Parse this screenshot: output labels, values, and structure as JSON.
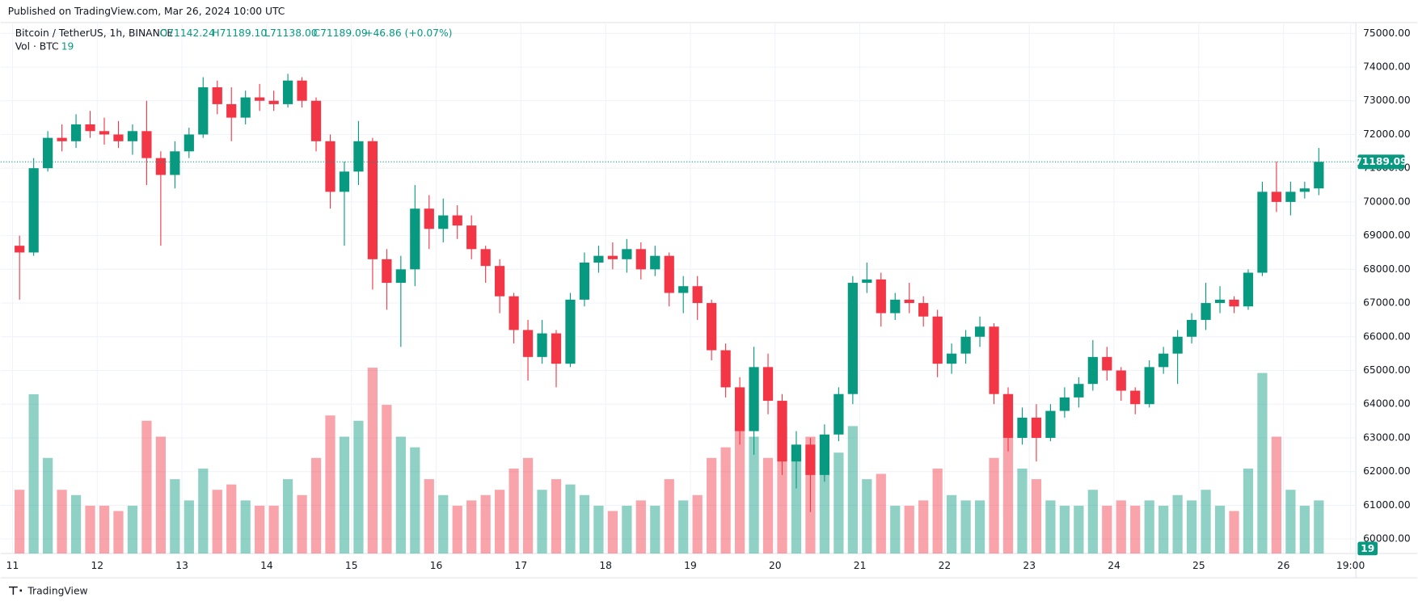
{
  "header": {
    "published": "Published on TradingView.com, Mar 26, 2024 10:00 UTC",
    "symbol": "Bitcoin / TetherUS, 1h, BINANCE",
    "open": "O71142.24",
    "high": "H71189.10",
    "low": "L71138.00",
    "close": "C71189.09",
    "change": "+46.86 (+0.07%)",
    "volume_label": "Vol · BTC",
    "volume_value": 19
  },
  "footer": {
    "brand": "TradingView"
  },
  "chart_data": {
    "type": "candlestick",
    "up_color": "#089981",
    "down_color": "#f23645",
    "xlim": [
      -1.3,
      380.5
    ],
    "ylim": [
      59570,
      75320
    ],
    "vlim": [
      0,
      100000
    ],
    "grid": true,
    "yticks": [
      {
        "value": 60000,
        "label": "60000.00"
      },
      {
        "value": 61000,
        "label": "61000.00"
      },
      {
        "value": 62000,
        "label": "62000.00"
      },
      {
        "value": 63000,
        "label": "63000.00"
      },
      {
        "value": 64000,
        "label": "64000.00"
      },
      {
        "value": 65000,
        "label": "65000.00"
      },
      {
        "value": 66000,
        "label": "66000.00"
      },
      {
        "value": 67000,
        "label": "67000.00"
      },
      {
        "value": 68000,
        "label": "68000.00"
      },
      {
        "value": 69000,
        "label": "69000.00"
      },
      {
        "value": 70000,
        "label": "70000.00"
      },
      {
        "value": 71000,
        "label": "71000.00"
      },
      {
        "value": 72000,
        "label": "72000.00"
      },
      {
        "value": 73000,
        "label": "73000.00"
      },
      {
        "value": 74000,
        "label": "74000.00"
      },
      {
        "value": 75000,
        "label": "75000.00"
      }
    ],
    "xticks": [
      {
        "value": 0,
        "label": "11"
      },
      {
        "value": 24,
        "label": "12"
      },
      {
        "value": 48,
        "label": "13"
      },
      {
        "value": 72,
        "label": "14"
      },
      {
        "value": 96,
        "label": "15"
      },
      {
        "value": 120,
        "label": "16"
      },
      {
        "value": 144,
        "label": "17"
      },
      {
        "value": 168,
        "label": "18"
      },
      {
        "value": 192,
        "label": "19"
      },
      {
        "value": 216,
        "label": "20"
      },
      {
        "value": 240,
        "label": "21"
      },
      {
        "value": 264,
        "label": "22"
      },
      {
        "value": 288,
        "label": "23"
      },
      {
        "value": 312,
        "label": "24"
      },
      {
        "value": 336,
        "label": "25"
      },
      {
        "value": 360,
        "label": "26"
      },
      {
        "value": 379,
        "label": "19:00"
      }
    ],
    "last_price": {
      "value": 71189.09,
      "label": "71189.09"
    },
    "candles": [
      {
        "x": 0,
        "o": 68700,
        "h": 69000,
        "l": 67100,
        "c": 68500,
        "v": 12000
      },
      {
        "x": 4,
        "o": 68500,
        "h": 71300,
        "l": 68400,
        "c": 71000,
        "v": 30000
      },
      {
        "x": 8,
        "o": 71000,
        "h": 72100,
        "l": 70900,
        "c": 71900,
        "v": 18000
      },
      {
        "x": 12,
        "o": 71900,
        "h": 72300,
        "l": 71500,
        "c": 71800,
        "v": 12000
      },
      {
        "x": 16,
        "o": 71800,
        "h": 72600,
        "l": 71600,
        "c": 72300,
        "v": 11000
      },
      {
        "x": 20,
        "o": 72300,
        "h": 72700,
        "l": 71900,
        "c": 72100,
        "v": 9000
      },
      {
        "x": 24,
        "o": 72100,
        "h": 72500,
        "l": 71700,
        "c": 72000,
        "v": 9000
      },
      {
        "x": 28,
        "o": 72000,
        "h": 72400,
        "l": 71600,
        "c": 71800,
        "v": 8000
      },
      {
        "x": 32,
        "o": 71800,
        "h": 72300,
        "l": 71400,
        "c": 72100,
        "v": 9000
      },
      {
        "x": 36,
        "o": 72100,
        "h": 73000,
        "l": 70500,
        "c": 71300,
        "v": 25000
      },
      {
        "x": 40,
        "o": 71300,
        "h": 71500,
        "l": 68700,
        "c": 70800,
        "v": 22000
      },
      {
        "x": 44,
        "o": 70800,
        "h": 71800,
        "l": 70400,
        "c": 71500,
        "v": 14000
      },
      {
        "x": 48,
        "o": 71500,
        "h": 72200,
        "l": 71300,
        "c": 72000,
        "v": 10000
      },
      {
        "x": 52,
        "o": 72000,
        "h": 73700,
        "l": 71900,
        "c": 73400,
        "v": 16000
      },
      {
        "x": 56,
        "o": 73400,
        "h": 73600,
        "l": 72600,
        "c": 72900,
        "v": 12000
      },
      {
        "x": 60,
        "o": 72900,
        "h": 73400,
        "l": 71800,
        "c": 72500,
        "v": 13000
      },
      {
        "x": 64,
        "o": 72500,
        "h": 73300,
        "l": 72300,
        "c": 73100,
        "v": 10000
      },
      {
        "x": 68,
        "o": 73100,
        "h": 73500,
        "l": 72700,
        "c": 73000,
        "v": 9000
      },
      {
        "x": 72,
        "o": 73000,
        "h": 73300,
        "l": 72700,
        "c": 72900,
        "v": 9000
      },
      {
        "x": 76,
        "o": 72900,
        "h": 73800,
        "l": 72800,
        "c": 73600,
        "v": 14000
      },
      {
        "x": 80,
        "o": 73600,
        "h": 73700,
        "l": 72800,
        "c": 73000,
        "v": 11000
      },
      {
        "x": 84,
        "o": 73000,
        "h": 73100,
        "l": 71500,
        "c": 71800,
        "v": 18000
      },
      {
        "x": 88,
        "o": 71800,
        "h": 72000,
        "l": 69800,
        "c": 70300,
        "v": 26000
      },
      {
        "x": 92,
        "o": 70300,
        "h": 71200,
        "l": 68700,
        "c": 70900,
        "v": 22000
      },
      {
        "x": 96,
        "o": 70900,
        "h": 72400,
        "l": 70500,
        "c": 71800,
        "v": 25000
      },
      {
        "x": 100,
        "o": 71800,
        "h": 71900,
        "l": 67400,
        "c": 68300,
        "v": 35000
      },
      {
        "x": 104,
        "o": 68300,
        "h": 68600,
        "l": 66800,
        "c": 67600,
        "v": 28000
      },
      {
        "x": 108,
        "o": 67600,
        "h": 68400,
        "l": 65700,
        "c": 68000,
        "v": 22000
      },
      {
        "x": 112,
        "o": 68000,
        "h": 70500,
        "l": 67500,
        "c": 69800,
        "v": 20000
      },
      {
        "x": 116,
        "o": 69800,
        "h": 70200,
        "l": 68600,
        "c": 69200,
        "v": 14000
      },
      {
        "x": 120,
        "o": 69200,
        "h": 70100,
        "l": 68800,
        "c": 69600,
        "v": 11000
      },
      {
        "x": 124,
        "o": 69600,
        "h": 69900,
        "l": 68900,
        "c": 69300,
        "v": 9000
      },
      {
        "x": 128,
        "o": 69300,
        "h": 69600,
        "l": 68300,
        "c": 68600,
        "v": 10000
      },
      {
        "x": 132,
        "o": 68600,
        "h": 68700,
        "l": 67600,
        "c": 68100,
        "v": 11000
      },
      {
        "x": 136,
        "o": 68100,
        "h": 68300,
        "l": 66700,
        "c": 67200,
        "v": 12000
      },
      {
        "x": 140,
        "o": 67200,
        "h": 67300,
        "l": 65800,
        "c": 66200,
        "v": 16000
      },
      {
        "x": 144,
        "o": 66200,
        "h": 66500,
        "l": 64700,
        "c": 65400,
        "v": 18000
      },
      {
        "x": 148,
        "o": 65400,
        "h": 66500,
        "l": 65200,
        "c": 66100,
        "v": 12000
      },
      {
        "x": 152,
        "o": 66100,
        "h": 66200,
        "l": 64500,
        "c": 65200,
        "v": 14000
      },
      {
        "x": 156,
        "o": 65200,
        "h": 67300,
        "l": 65100,
        "c": 67100,
        "v": 13000
      },
      {
        "x": 160,
        "o": 67100,
        "h": 68500,
        "l": 66900,
        "c": 68200,
        "v": 11000
      },
      {
        "x": 164,
        "o": 68200,
        "h": 68700,
        "l": 67900,
        "c": 68400,
        "v": 9000
      },
      {
        "x": 168,
        "o": 68400,
        "h": 68800,
        "l": 68000,
        "c": 68300,
        "v": 8000
      },
      {
        "x": 172,
        "o": 68300,
        "h": 68900,
        "l": 67900,
        "c": 68600,
        "v": 9000
      },
      {
        "x": 176,
        "o": 68600,
        "h": 68800,
        "l": 67700,
        "c": 68000,
        "v": 10000
      },
      {
        "x": 180,
        "o": 68000,
        "h": 68700,
        "l": 67800,
        "c": 68400,
        "v": 9000
      },
      {
        "x": 184,
        "o": 68400,
        "h": 68500,
        "l": 66900,
        "c": 67300,
        "v": 14000
      },
      {
        "x": 188,
        "o": 67300,
        "h": 67800,
        "l": 66700,
        "c": 67500,
        "v": 10000
      },
      {
        "x": 192,
        "o": 67500,
        "h": 67800,
        "l": 66500,
        "c": 67000,
        "v": 11000
      },
      {
        "x": 196,
        "o": 67000,
        "h": 67100,
        "l": 65300,
        "c": 65600,
        "v": 18000
      },
      {
        "x": 200,
        "o": 65600,
        "h": 65800,
        "l": 64200,
        "c": 64500,
        "v": 20000
      },
      {
        "x": 204,
        "o": 64500,
        "h": 64800,
        "l": 62800,
        "c": 63200,
        "v": 24000
      },
      {
        "x": 208,
        "o": 63200,
        "h": 65700,
        "l": 62500,
        "c": 65100,
        "v": 22000
      },
      {
        "x": 212,
        "o": 65100,
        "h": 65500,
        "l": 63700,
        "c": 64100,
        "v": 18000
      },
      {
        "x": 216,
        "o": 64100,
        "h": 64300,
        "l": 61900,
        "c": 62300,
        "v": 24000
      },
      {
        "x": 220,
        "o": 62300,
        "h": 63200,
        "l": 61500,
        "c": 62800,
        "v": 20000
      },
      {
        "x": 224,
        "o": 62800,
        "h": 63000,
        "l": 60800,
        "c": 61900,
        "v": 22000
      },
      {
        "x": 228,
        "o": 61900,
        "h": 63400,
        "l": 61700,
        "c": 63100,
        "v": 18000
      },
      {
        "x": 232,
        "o": 63100,
        "h": 64500,
        "l": 62900,
        "c": 64300,
        "v": 19000
      },
      {
        "x": 236,
        "o": 64300,
        "h": 67800,
        "l": 64000,
        "c": 67600,
        "v": 24000
      },
      {
        "x": 240,
        "o": 67600,
        "h": 68200,
        "l": 67300,
        "c": 67700,
        "v": 14000
      },
      {
        "x": 244,
        "o": 67700,
        "h": 67900,
        "l": 66300,
        "c": 66700,
        "v": 15000
      },
      {
        "x": 248,
        "o": 66700,
        "h": 67300,
        "l": 66500,
        "c": 67100,
        "v": 9000
      },
      {
        "x": 252,
        "o": 67100,
        "h": 67600,
        "l": 66700,
        "c": 67000,
        "v": 9000
      },
      {
        "x": 256,
        "o": 67000,
        "h": 67200,
        "l": 66300,
        "c": 66600,
        "v": 10000
      },
      {
        "x": 260,
        "o": 66600,
        "h": 66800,
        "l": 64800,
        "c": 65200,
        "v": 16000
      },
      {
        "x": 264,
        "o": 65200,
        "h": 65800,
        "l": 64900,
        "c": 65500,
        "v": 11000
      },
      {
        "x": 268,
        "o": 65500,
        "h": 66200,
        "l": 65200,
        "c": 66000,
        "v": 10000
      },
      {
        "x": 272,
        "o": 66000,
        "h": 66600,
        "l": 65700,
        "c": 66300,
        "v": 10000
      },
      {
        "x": 276,
        "o": 66300,
        "h": 66400,
        "l": 64000,
        "c": 64300,
        "v": 18000
      },
      {
        "x": 280,
        "o": 64300,
        "h": 64500,
        "l": 62600,
        "c": 63000,
        "v": 22000
      },
      {
        "x": 284,
        "o": 63000,
        "h": 63900,
        "l": 62800,
        "c": 63600,
        "v": 16000
      },
      {
        "x": 288,
        "o": 63600,
        "h": 64000,
        "l": 62300,
        "c": 63000,
        "v": 14000
      },
      {
        "x": 292,
        "o": 63000,
        "h": 64000,
        "l": 62900,
        "c": 63800,
        "v": 10000
      },
      {
        "x": 296,
        "o": 63800,
        "h": 64500,
        "l": 63600,
        "c": 64200,
        "v": 9000
      },
      {
        "x": 300,
        "o": 64200,
        "h": 64800,
        "l": 63900,
        "c": 64600,
        "v": 9000
      },
      {
        "x": 304,
        "o": 64600,
        "h": 65900,
        "l": 64400,
        "c": 65400,
        "v": 12000
      },
      {
        "x": 308,
        "o": 65400,
        "h": 65700,
        "l": 64700,
        "c": 65000,
        "v": 9000
      },
      {
        "x": 312,
        "o": 65000,
        "h": 65100,
        "l": 64100,
        "c": 64400,
        "v": 10000
      },
      {
        "x": 316,
        "o": 64400,
        "h": 64500,
        "l": 63700,
        "c": 64000,
        "v": 9000
      },
      {
        "x": 320,
        "o": 64000,
        "h": 65300,
        "l": 63900,
        "c": 65100,
        "v": 10000
      },
      {
        "x": 324,
        "o": 65100,
        "h": 65700,
        "l": 64900,
        "c": 65500,
        "v": 9000
      },
      {
        "x": 328,
        "o": 65500,
        "h": 66200,
        "l": 64600,
        "c": 66000,
        "v": 11000
      },
      {
        "x": 332,
        "o": 66000,
        "h": 66700,
        "l": 65800,
        "c": 66500,
        "v": 10000
      },
      {
        "x": 336,
        "o": 66500,
        "h": 67600,
        "l": 66200,
        "c": 67000,
        "v": 12000
      },
      {
        "x": 340,
        "o": 67000,
        "h": 67500,
        "l": 66700,
        "c": 67100,
        "v": 9000
      },
      {
        "x": 344,
        "o": 67100,
        "h": 67200,
        "l": 66700,
        "c": 66900,
        "v": 8000
      },
      {
        "x": 348,
        "o": 66900,
        "h": 68000,
        "l": 66800,
        "c": 67900,
        "v": 16000
      },
      {
        "x": 352,
        "o": 67900,
        "h": 70600,
        "l": 67800,
        "c": 70300,
        "v": 34000
      },
      {
        "x": 356,
        "o": 70300,
        "h": 71200,
        "l": 69700,
        "c": 70000,
        "v": 22000
      },
      {
        "x": 360,
        "o": 70000,
        "h": 70600,
        "l": 69600,
        "c": 70300,
        "v": 12000
      },
      {
        "x": 364,
        "o": 70300,
        "h": 70600,
        "l": 70100,
        "c": 70400,
        "v": 9000
      },
      {
        "x": 368,
        "o": 70400,
        "h": 71600,
        "l": 70200,
        "c": 71189.09,
        "v": 10000
      }
    ]
  }
}
